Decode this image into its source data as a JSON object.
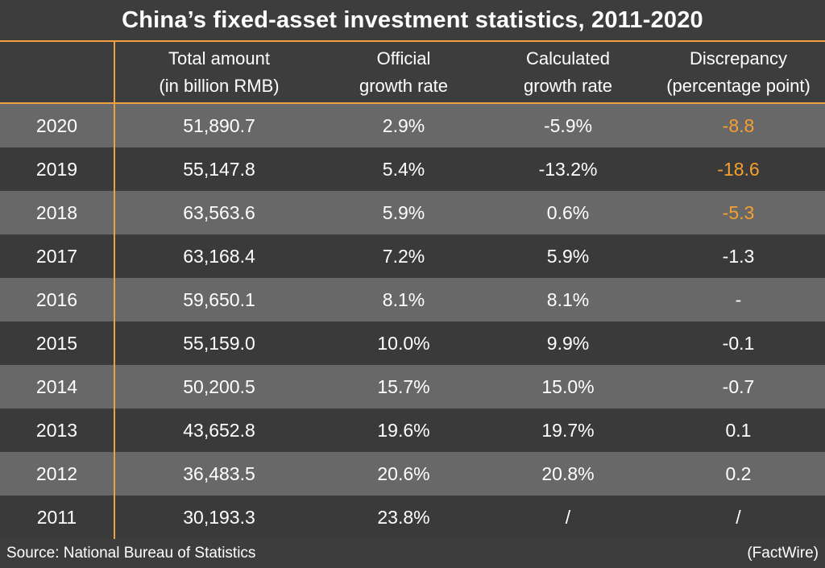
{
  "colors": {
    "background": "#3d3d3d",
    "row_light": "#686868",
    "row_dark": "#3a3a3a",
    "accent_rule": "#f0a040",
    "highlight_text": "#f5a030",
    "text": "#ffffff"
  },
  "chart_data": {
    "type": "table",
    "title": "China’s fixed-asset investment statistics, 2011-2020",
    "columns": [
      {
        "key": "year",
        "line1": "",
        "line2": ""
      },
      {
        "key": "total",
        "line1": "Total amount",
        "line2": "(in billion RMB)"
      },
      {
        "key": "official",
        "line1": "Official",
        "line2": "growth rate"
      },
      {
        "key": "calculated",
        "line1": "Calculated",
        "line2": "growth rate"
      },
      {
        "key": "discrepancy",
        "line1": "Discrepancy",
        "line2": "(percentage point)"
      }
    ],
    "rows": [
      {
        "year": "2020",
        "total": "51,890.7",
        "official": "2.9%",
        "calculated": "-5.9%",
        "discrepancy": "-8.8",
        "highlight": true
      },
      {
        "year": "2019",
        "total": "55,147.8",
        "official": "5.4%",
        "calculated": "-13.2%",
        "discrepancy": "-18.6",
        "highlight": true
      },
      {
        "year": "2018",
        "total": "63,563.6",
        "official": "5.9%",
        "calculated": "0.6%",
        "discrepancy": "-5.3",
        "highlight": true
      },
      {
        "year": "2017",
        "total": "63,168.4",
        "official": "7.2%",
        "calculated": "5.9%",
        "discrepancy": "-1.3",
        "highlight": false
      },
      {
        "year": "2016",
        "total": "59,650.1",
        "official": "8.1%",
        "calculated": "8.1%",
        "discrepancy": "-",
        "highlight": false
      },
      {
        "year": "2015",
        "total": "55,159.0",
        "official": "10.0%",
        "calculated": "9.9%",
        "discrepancy": "-0.1",
        "highlight": false
      },
      {
        "year": "2014",
        "total": "50,200.5",
        "official": "15.7%",
        "calculated": "15.0%",
        "discrepancy": "-0.7",
        "highlight": false
      },
      {
        "year": "2013",
        "total": "43,652.8",
        "official": "19.6%",
        "calculated": "19.7%",
        "discrepancy": "0.1",
        "highlight": false
      },
      {
        "year": "2012",
        "total": "36,483.5",
        "official": "20.6%",
        "calculated": "20.8%",
        "discrepancy": "0.2",
        "highlight": false
      },
      {
        "year": "2011",
        "total": "30,193.3",
        "official": "23.8%",
        "calculated": "/",
        "discrepancy": "/",
        "highlight": false
      }
    ],
    "source": "Source: National Bureau of Statistics",
    "credit": "(FactWire)"
  }
}
